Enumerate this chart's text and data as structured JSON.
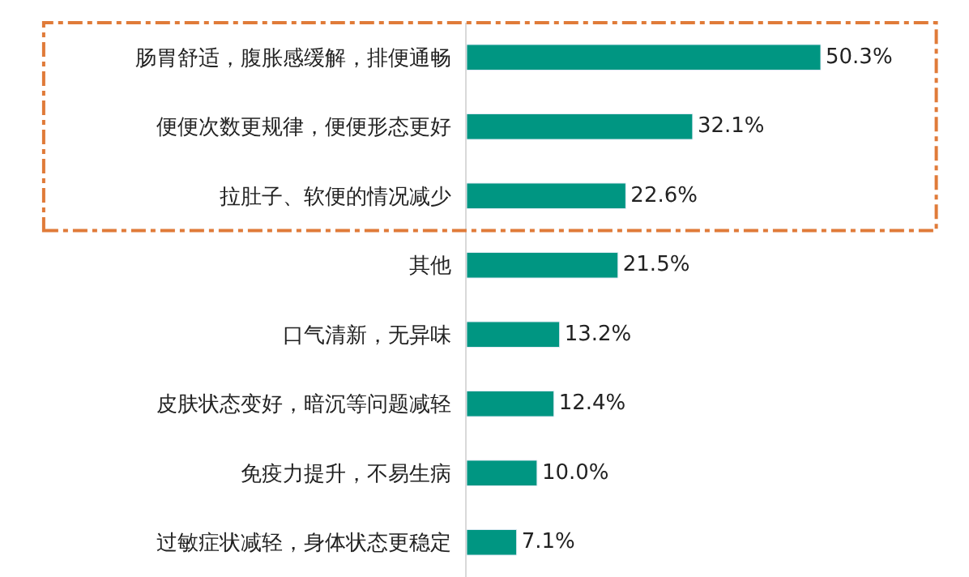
{
  "chart_data": {
    "type": "bar",
    "orientation": "horizontal",
    "categories": [
      "肠胃舒适，腹胀感缓解，排便通畅",
      "便便次数更规律，便便形态更好",
      "拉肚子、软便的情况减少",
      "其他",
      "口气清新，无异味",
      "皮肤状态变好，暗沉等问题减轻",
      "免疫力提升，不易生病",
      "过敏症状减轻，身体状态更稳定"
    ],
    "values": [
      50.3,
      32.1,
      22.6,
      21.5,
      13.2,
      12.4,
      10.0,
      7.1
    ],
    "value_labels": [
      "50.3%",
      "32.1%",
      "22.6%",
      "21.5%",
      "13.2%",
      "12.4%",
      "10.0%",
      "7.1%"
    ],
    "color": "#009682",
    "tick_labels": "y",
    "legend": false
  }
}
